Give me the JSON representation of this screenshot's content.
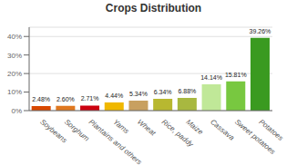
{
  "chart_data": {
    "type": "bar",
    "title": "Crops Distribution",
    "categories": [
      "Soybeans",
      "Sorghum",
      "Plantains and others",
      "Yams",
      "Wheat",
      "Rice, paddy",
      "Maize",
      "Cassava",
      "Sweet potatoes",
      "Potatoes"
    ],
    "values": [
      2.48,
      2.6,
      2.71,
      4.44,
      5.34,
      6.34,
      6.88,
      14.14,
      15.81,
      39.26
    ],
    "value_labels": [
      "2.48%",
      "2.60%",
      "2.71%",
      "4.44%",
      "5.34%",
      "6.34%",
      "6.88%",
      "14.14%",
      "15.81%",
      "39.26%"
    ],
    "colors": [
      "#d94800",
      "#e07820",
      "#cc0010",
      "#f0b800",
      "#c8a060",
      "#b8b830",
      "#a8b840",
      "#c0e898",
      "#78c840",
      "#3a9a20"
    ],
    "ylim": [
      0,
      45
    ],
    "yticks": [
      {
        "value": 0,
        "label": "0%"
      },
      {
        "value": 10,
        "label": "10%"
      },
      {
        "value": 20,
        "label": "20%"
      },
      {
        "value": 30,
        "label": "30%"
      },
      {
        "value": 40,
        "label": "40%"
      }
    ],
    "grid": true,
    "data_labels": true
  }
}
